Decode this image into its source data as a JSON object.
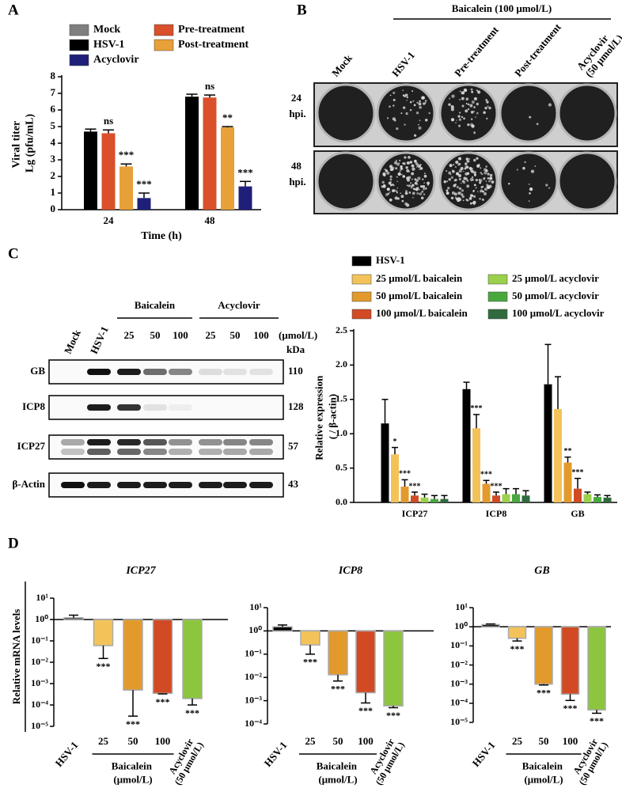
{
  "panel_labels": [
    "A",
    "B",
    "C",
    "D"
  ],
  "plaque_assay": {
    "treatment_label": "Baicalein (100 μmol/L)",
    "columns": [
      "Mock",
      "HSV-1",
      "Pre-treatment",
      "Post-treatment",
      "Acyclovir (50 μmol/L)"
    ],
    "rows": [
      "24 hpi.",
      "48 hpi."
    ]
  },
  "western_blot": {
    "lanes": [
      "Mock",
      "HSV-1",
      "25",
      "50",
      "100",
      "25",
      "50",
      "100"
    ],
    "groups": [
      "Baicalein",
      "Acyclovir"
    ],
    "unit": "(μmol/L)",
    "kda_label": "kDa",
    "rows": [
      {
        "protein": "GB",
        "kda": 110
      },
      {
        "protein": "ICP8",
        "kda": 128
      },
      {
        "protein": "ICP27",
        "kda": 57
      },
      {
        "protein": "β-Actin",
        "kda": 43
      }
    ]
  },
  "chart_data": [
    {
      "type": "bar",
      "y_label": "Viral titer Lg (pfu/mL)",
      "x_label": "Time (h)",
      "categories": [
        "24",
        "48"
      ],
      "ylim": [
        0,
        8
      ],
      "yticks": [
        0,
        1,
        2,
        3,
        4,
        5,
        6,
        7,
        8
      ],
      "series": [
        {
          "name": "Mock",
          "color": "#7f7f7f",
          "values": [
            null,
            null
          ],
          "errors": [
            null,
            null
          ],
          "significance": [
            null,
            null
          ]
        },
        {
          "name": "HSV-1",
          "color": "#000000",
          "values": [
            4.7,
            6.8
          ],
          "errors": [
            0.15,
            0.15
          ],
          "significance": [
            null,
            null
          ]
        },
        {
          "name": "Pre-treatment",
          "color": "#d9502a",
          "values": [
            4.6,
            6.75
          ],
          "errors": [
            0.2,
            0.15
          ],
          "significance": [
            "ns",
            "ns"
          ]
        },
        {
          "name": "Post-treatment",
          "color": "#e8a038",
          "values": [
            2.6,
            4.95
          ],
          "errors": [
            0.15,
            0.05
          ],
          "significance": [
            "***",
            "**"
          ]
        },
        {
          "name": "Acyclovir",
          "color": "#1f1f7a",
          "values": [
            0.7,
            1.4
          ],
          "errors": [
            0.3,
            0.3
          ],
          "significance": [
            "***",
            "***"
          ]
        }
      ]
    },
    {
      "type": "bar",
      "y_label": "Relative expression ( / β-actin)",
      "categories": [
        "ICP27",
        "ICP8",
        "GB"
      ],
      "ylim": [
        0,
        2.5
      ],
      "yticks": [
        {
          "value": 0,
          "label": "0.0"
        },
        0.5,
        {
          "value": 1,
          "label": "1.0"
        },
        1.5,
        {
          "value": 2,
          "label": "2.0"
        },
        2.5
      ],
      "series": [
        {
          "name": "HSV-1",
          "color": "#000000",
          "values": [
            1.15,
            1.65,
            1.72
          ],
          "errors": [
            0.35,
            0.1,
            0.58
          ],
          "significance": [
            null,
            null,
            null
          ]
        },
        {
          "name": "25 μmol/L baicalein",
          "color": "#f3c35a",
          "values": [
            0.7,
            1.08,
            1.36
          ],
          "errors": [
            0.1,
            0.2,
            0.47
          ],
          "significance": [
            "*",
            "***",
            null
          ]
        },
        {
          "name": "50 μmol/L baicalein",
          "color": "#e39a2d",
          "values": [
            0.23,
            0.27,
            0.58
          ],
          "errors": [
            0.1,
            0.05,
            0.08
          ],
          "significance": [
            "***",
            "***",
            "**"
          ]
        },
        {
          "name": "100 μmol/L baicalein",
          "color": "#d24a24",
          "values": [
            0.1,
            0.1,
            0.2
          ],
          "errors": [
            0.05,
            0.05,
            0.15
          ],
          "significance": [
            "***",
            "***",
            "***"
          ]
        },
        {
          "name": "25 μmol/L acyclovir",
          "color": "#9bd14a",
          "values": [
            0.07,
            0.12,
            0.12
          ],
          "errors": [
            0.05,
            0.08,
            0.03
          ],
          "significance": [
            null,
            null,
            null
          ]
        },
        {
          "name": "50 μmol/L acyclovir",
          "color": "#48a83e",
          "values": [
            0.05,
            0.12,
            0.08
          ],
          "errors": [
            0.05,
            0.08,
            0.03
          ],
          "significance": [
            null,
            null,
            null
          ]
        },
        {
          "name": "100 μmol/L acyclovir",
          "color": "#2f6b3d",
          "values": [
            0.05,
            0.1,
            0.07
          ],
          "errors": [
            0.05,
            0.07,
            0.03
          ],
          "significance": [
            null,
            null,
            null
          ]
        }
      ]
    },
    {
      "type": "bar",
      "title": "ICP27",
      "y_label": "Relative mRNA levels",
      "log_scale": true,
      "bar_origin": 1,
      "categories": [
        "HSV-1",
        "25",
        "50",
        "100",
        "Acyclovir (50 μmol/L)"
      ],
      "group_label": "Baicalein (μmol/L)",
      "values": [
        1.2,
        0.06,
        0.0005,
        0.00035,
        0.0002
      ],
      "errors": [
        0.4,
        0.045,
        0.00047,
        2e-05,
        0.0001
      ],
      "colors": [
        "#000000",
        "#f3c35a",
        "#e39a2d",
        "#d24a24",
        "#8cc63f"
      ],
      "significance": [
        null,
        "***",
        "***",
        "***",
        "***"
      ],
      "ylim": [
        1e-05,
        10
      ],
      "yticks": [
        {
          "value": 10,
          "label": "10¹"
        },
        {
          "value": 1,
          "label": "10⁰"
        },
        {
          "value": 0.1,
          "label": "10⁻¹"
        },
        {
          "value": 0.01,
          "label": "10⁻²"
        },
        {
          "value": 0.001,
          "label": "10⁻³"
        },
        {
          "value": 0.0001,
          "label": "10⁻⁴"
        },
        {
          "value": 1e-05,
          "label": "10⁻⁵"
        }
      ]
    },
    {
      "type": "bar",
      "title": "ICP8",
      "log_scale": true,
      "bar_origin": 1,
      "categories": [
        "HSV-1",
        "25",
        "50",
        "100",
        "Acyclovir (50 μmol/L)"
      ],
      "group_label": "Baicalein (μmol/L)",
      "values": [
        1.5,
        0.25,
        0.013,
        0.0022,
        0.0006
      ],
      "errors": [
        0.3,
        0.15,
        0.006,
        0.0014,
        0.0001
      ],
      "colors": [
        "#000000",
        "#f3c35a",
        "#e39a2d",
        "#d24a24",
        "#8cc63f"
      ],
      "significance": [
        null,
        "***",
        "***",
        "***",
        "***"
      ],
      "ylim": [
        0.0001,
        10
      ],
      "yticks": [
        {
          "value": 10,
          "label": "10¹"
        },
        {
          "value": 1,
          "label": "10⁰"
        },
        {
          "value": 0.1,
          "label": "10⁻¹"
        },
        {
          "value": 0.01,
          "label": "10⁻²"
        },
        {
          "value": 0.001,
          "label": "10⁻³"
        },
        {
          "value": 0.0001,
          "label": "10⁻⁴"
        }
      ]
    },
    {
      "type": "bar",
      "title": "GB",
      "log_scale": true,
      "bar_origin": 1,
      "categories": [
        "HSV-1",
        "25",
        "50",
        "100",
        "Acyclovir (50 μmol/L)"
      ],
      "group_label": "Baicalein (μmol/L)",
      "values": [
        1.3,
        0.25,
        0.001,
        0.0003,
        4.5e-05
      ],
      "errors": [
        0.1,
        0.07,
        0.0001,
        0.00016,
        1.5e-05
      ],
      "colors": [
        "#000000",
        "#f3c35a",
        "#e39a2d",
        "#d24a24",
        "#8cc63f"
      ],
      "significance": [
        null,
        "***",
        "***",
        "***",
        "***"
      ],
      "ylim": [
        1e-05,
        10
      ],
      "yticks": [
        {
          "value": 10,
          "label": "10¹"
        },
        {
          "value": 1,
          "label": "10⁰"
        },
        {
          "value": 0.1,
          "label": "10⁻¹"
        },
        {
          "value": 0.01,
          "label": "10⁻²"
        },
        {
          "value": 0.001,
          "label": "10⁻³"
        },
        {
          "value": 0.0001,
          "label": "10⁻⁴"
        },
        {
          "value": 1e-05,
          "label": "10⁻⁵"
        }
      ]
    }
  ]
}
